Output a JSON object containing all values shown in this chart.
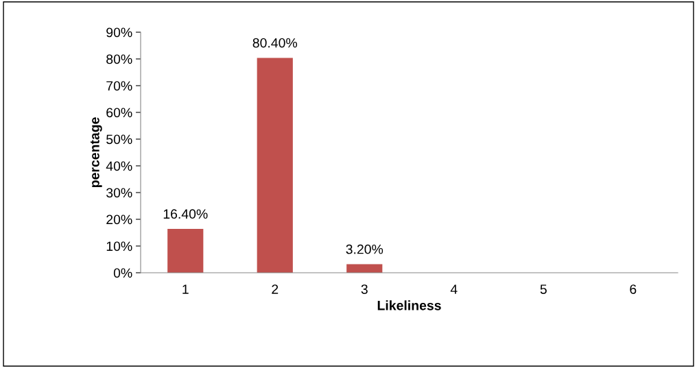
{
  "chart_data": {
    "type": "bar",
    "xlabel": "Likeliness",
    "ylabel": "percentage",
    "categories": [
      "1",
      "2",
      "3",
      "4",
      "5",
      "6"
    ],
    "values": [
      16.4,
      80.4,
      3.2,
      0,
      0,
      0
    ],
    "value_labels": [
      "16.40%",
      "80.40%",
      "3.20%",
      null,
      null,
      null
    ],
    "color": "#c0504d",
    "ylim": [
      0,
      90
    ],
    "yticks": [
      {
        "value": 0,
        "label": "0%"
      },
      {
        "value": 10,
        "label": "10%"
      },
      {
        "value": 20,
        "label": "20%"
      },
      {
        "value": 30,
        "label": "30%"
      },
      {
        "value": 40,
        "label": "40%"
      },
      {
        "value": 50,
        "label": "50%"
      },
      {
        "value": 60,
        "label": "60%"
      },
      {
        "value": 70,
        "label": "70%"
      },
      {
        "value": 80,
        "label": "80%"
      },
      {
        "value": 90,
        "label": "90%"
      }
    ]
  }
}
